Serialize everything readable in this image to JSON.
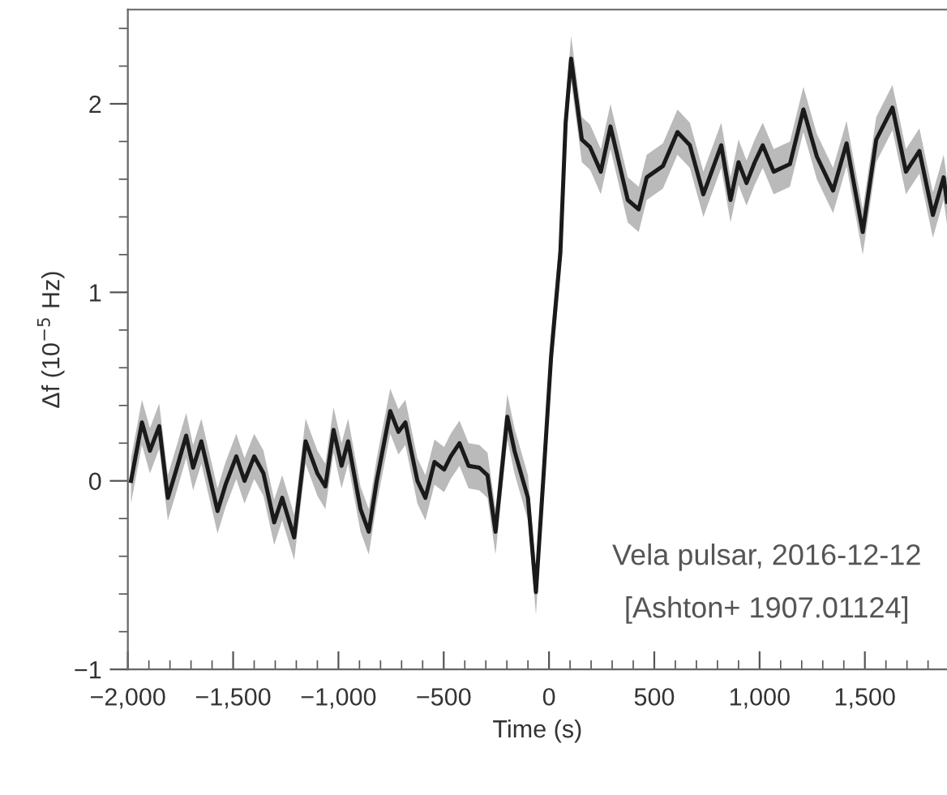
{
  "chart_data": {
    "type": "line",
    "xlabel": "Time (s)",
    "ylabel": "Δf (10$^{−5}$ Hz)",
    "annotations": [
      "Vela pulsar, 2016-12-12",
      "[Ashton+ 1907.01124]"
    ],
    "xlim": [
      -2000,
      1890
    ],
    "ylim": [
      -1,
      2.5
    ],
    "xticks": [
      {
        "value": -2000,
        "label": "−2,000"
      },
      {
        "value": -1900,
        "label": null
      },
      {
        "value": -1800,
        "label": null
      },
      {
        "value": -1700,
        "label": null
      },
      {
        "value": -1600,
        "label": null
      },
      {
        "value": -1500,
        "label": "−1,500"
      },
      {
        "value": -1400,
        "label": null
      },
      {
        "value": -1300,
        "label": null
      },
      {
        "value": -1200,
        "label": null
      },
      {
        "value": -1100,
        "label": null
      },
      {
        "value": -1000,
        "label": "−1,000"
      },
      {
        "value": -900,
        "label": null
      },
      {
        "value": -800,
        "label": null
      },
      {
        "value": -700,
        "label": null
      },
      {
        "value": -600,
        "label": null
      },
      {
        "value": -500,
        "label": "−500"
      },
      {
        "value": -400,
        "label": null
      },
      {
        "value": -300,
        "label": null
      },
      {
        "value": -200,
        "label": null
      },
      {
        "value": -100,
        "label": null
      },
      0,
      {
        "value": 100,
        "label": null
      },
      {
        "value": 200,
        "label": null
      },
      {
        "value": 300,
        "label": null
      },
      {
        "value": 400,
        "label": null
      },
      500,
      {
        "value": 600,
        "label": null
      },
      {
        "value": 700,
        "label": null
      },
      {
        "value": 800,
        "label": null
      },
      {
        "value": 900,
        "label": null
      },
      {
        "value": 1000,
        "label": "1,000"
      },
      {
        "value": 1100,
        "label": null
      },
      {
        "value": 1200,
        "label": null
      },
      {
        "value": 1300,
        "label": null
      },
      {
        "value": 1400,
        "label": null
      },
      {
        "value": 1500,
        "label": "1,500"
      },
      {
        "value": 1600,
        "label": null
      },
      {
        "value": 1700,
        "label": null
      },
      {
        "value": 1800,
        "label": null
      }
    ],
    "yticks": [
      {
        "value": -1,
        "label": "−1"
      },
      {
        "value": -0.8,
        "label": null
      },
      {
        "value": -0.6,
        "label": null
      },
      {
        "value": -0.4,
        "label": null
      },
      {
        "value": -0.2,
        "label": null
      },
      0,
      {
        "value": 0.2,
        "label": null
      },
      {
        "value": 0.4,
        "label": null
      },
      {
        "value": 0.6,
        "label": null
      },
      {
        "value": 0.8,
        "label": null
      },
      1,
      {
        "value": 1.2,
        "label": null
      },
      {
        "value": 1.4,
        "label": null
      },
      {
        "value": 1.6,
        "label": null
      },
      {
        "value": 1.8,
        "label": null
      },
      2,
      {
        "value": 2.2,
        "label": null
      },
      {
        "value": 2.4,
        "label": null
      }
    ],
    "grid": false,
    "legend": false,
    "series": [
      {
        "color": "#1a1a1a",
        "x": [
          -1985,
          -1933,
          -1895,
          -1851,
          -1810,
          -1767,
          -1723,
          -1690,
          -1651,
          -1574,
          -1536,
          -1485,
          -1446,
          -1400,
          -1356,
          -1305,
          -1267,
          -1210,
          -1156,
          -1100,
          -1062,
          -1023,
          -985,
          -954,
          -895,
          -856,
          -818,
          -754,
          -715,
          -682,
          -625,
          -587,
          -544,
          -498,
          -467,
          -425,
          -382,
          -331,
          -292,
          -254,
          -198,
          -164,
          -100,
          -62,
          -23,
          10,
          54,
          79,
          105,
          156,
          195,
          246,
          292,
          374,
          426,
          464,
          541,
          610,
          669,
          733,
          818,
          862,
          900,
          938,
          977,
          1015,
          1067,
          1144,
          1208,
          1272,
          1349,
          1413,
          1490,
          1554,
          1631,
          1695,
          1759,
          1823,
          1874,
          1890
        ],
        "values": [
          0.0,
          0.31,
          0.16,
          0.29,
          -0.09,
          0.07,
          0.24,
          0.07,
          0.21,
          -0.16,
          -0.02,
          0.13,
          0.0,
          0.13,
          0.04,
          -0.22,
          -0.09,
          -0.3,
          0.21,
          0.04,
          -0.03,
          0.27,
          0.08,
          0.21,
          -0.15,
          -0.27,
          0.0,
          0.37,
          0.26,
          0.31,
          0.0,
          -0.09,
          0.1,
          0.06,
          0.13,
          0.2,
          0.08,
          0.07,
          0.03,
          -0.27,
          0.34,
          0.16,
          -0.09,
          -0.59,
          0.08,
          0.66,
          1.21,
          1.9,
          2.24,
          1.81,
          1.77,
          1.64,
          1.88,
          1.49,
          1.44,
          1.61,
          1.67,
          1.85,
          1.78,
          1.52,
          1.78,
          1.49,
          1.69,
          1.58,
          1.69,
          1.78,
          1.64,
          1.68,
          1.97,
          1.72,
          1.54,
          1.79,
          1.32,
          1.81,
          1.98,
          1.64,
          1.75,
          1.41,
          1.61,
          1.48
        ],
        "lower": [
          -0.12,
          0.19,
          0.04,
          0.17,
          -0.21,
          -0.05,
          0.12,
          -0.05,
          0.09,
          -0.28,
          -0.14,
          0.01,
          -0.12,
          0.01,
          -0.08,
          -0.34,
          -0.21,
          -0.42,
          0.09,
          -0.08,
          -0.15,
          0.15,
          -0.04,
          0.09,
          -0.27,
          -0.39,
          -0.12,
          0.25,
          0.14,
          0.19,
          -0.12,
          -0.21,
          -0.02,
          -0.06,
          0.01,
          0.08,
          -0.04,
          -0.05,
          -0.09,
          -0.39,
          0.22,
          0.04,
          -0.21,
          -0.71,
          -0.04,
          0.54,
          1.09,
          1.78,
          2.12,
          1.69,
          1.65,
          1.52,
          1.76,
          1.37,
          1.32,
          1.49,
          1.55,
          1.73,
          1.66,
          1.4,
          1.66,
          1.37,
          1.57,
          1.46,
          1.57,
          1.66,
          1.52,
          1.56,
          1.85,
          1.6,
          1.42,
          1.67,
          1.2,
          1.69,
          1.86,
          1.52,
          1.63,
          1.29,
          1.49,
          1.36
        ],
        "upper": [
          0.12,
          0.43,
          0.28,
          0.41,
          0.03,
          0.19,
          0.36,
          0.19,
          0.33,
          -0.04,
          0.1,
          0.25,
          0.12,
          0.25,
          0.16,
          -0.1,
          0.03,
          -0.18,
          0.33,
          0.16,
          0.09,
          0.39,
          0.2,
          0.33,
          -0.03,
          -0.15,
          0.12,
          0.49,
          0.38,
          0.43,
          0.12,
          0.03,
          0.22,
          0.18,
          0.25,
          0.32,
          0.2,
          0.19,
          0.15,
          -0.15,
          0.46,
          0.28,
          0.03,
          -0.47,
          0.2,
          0.78,
          1.33,
          2.02,
          2.36,
          1.93,
          1.89,
          1.76,
          2.0,
          1.61,
          1.56,
          1.73,
          1.79,
          1.97,
          1.9,
          1.64,
          1.9,
          1.61,
          1.81,
          1.7,
          1.81,
          1.9,
          1.76,
          1.8,
          2.09,
          1.84,
          1.66,
          1.91,
          1.44,
          1.93,
          2.1,
          1.76,
          1.87,
          1.53,
          1.73,
          1.6
        ]
      }
    ]
  }
}
